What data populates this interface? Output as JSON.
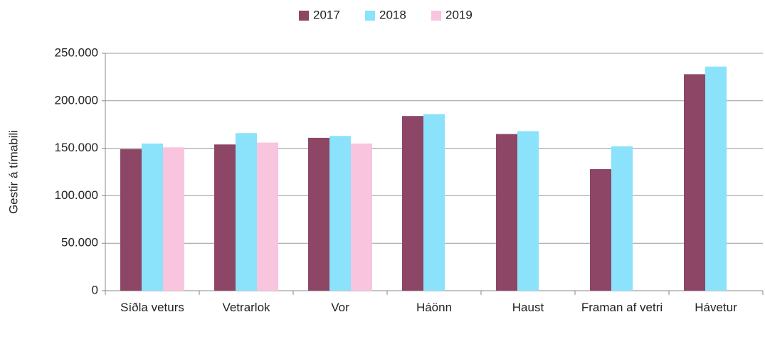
{
  "chart_data": {
    "type": "bar",
    "y_label": "Gestir á tímabili",
    "categories": [
      "Síðla veturs",
      "Vetrarlok",
      "Vor",
      "Háönn",
      "Haust",
      "Framan af vetri",
      "Hávetur"
    ],
    "series": [
      {
        "name": "2017",
        "color": "#8e4666",
        "values": [
          149000,
          154000,
          161000,
          184000,
          165000,
          128000,
          228000
        ]
      },
      {
        "name": "2018",
        "color": "#8be2fb",
        "values": [
          155000,
          166000,
          163000,
          186000,
          168000,
          152000,
          236000
        ]
      },
      {
        "name": "2019",
        "color": "#f9c4de",
        "values": [
          151000,
          156000,
          155000,
          null,
          null,
          null,
          null
        ]
      }
    ],
    "ylim": [
      0,
      250000
    ],
    "yticks": [
      0,
      {
        "value": 50000,
        "label": "50.000"
      },
      {
        "value": 100000,
        "label": "100.000"
      },
      {
        "value": 150000,
        "label": "150.000"
      },
      {
        "value": 200000,
        "label": "200.000"
      },
      {
        "value": 250000,
        "label": "250.000"
      }
    ],
    "grid": true,
    "legend": "top"
  }
}
